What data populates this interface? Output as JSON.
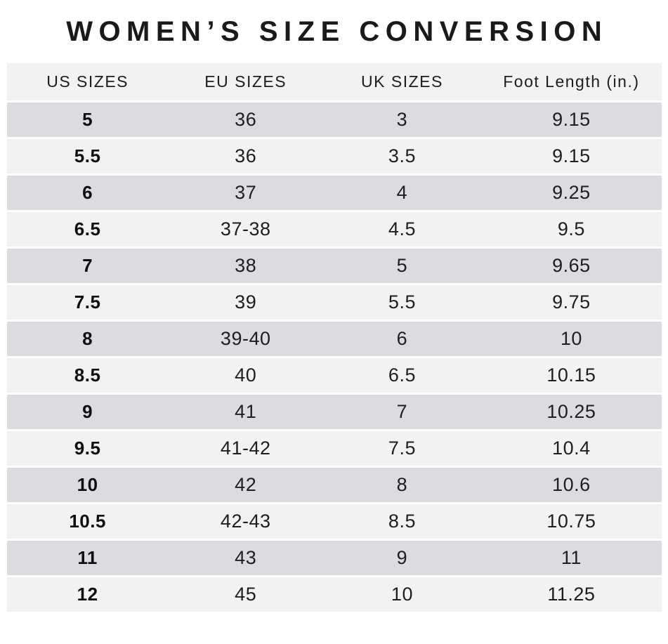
{
  "colors": {
    "row_dark": "#dbdcdf",
    "row_light": "#f2f2f3",
    "separator": "#ffffff",
    "text": "#1e1e1e",
    "background": "#ffffff"
  },
  "chart_data": {
    "type": "table",
    "title": "WOMEN’S SIZE CONVERSION",
    "columns": [
      "US SIZES",
      "EU SIZES",
      "UK SIZES",
      "Foot Length (in.)"
    ],
    "rows": [
      [
        "5",
        "36",
        "3",
        "9.15"
      ],
      [
        "5.5",
        "36",
        "3.5",
        "9.15"
      ],
      [
        "6",
        "37",
        "4",
        "9.25"
      ],
      [
        "6.5",
        "37-38",
        "4.5",
        "9.5"
      ],
      [
        "7",
        "38",
        "5",
        "9.65"
      ],
      [
        "7.5",
        "39",
        "5.5",
        "9.75"
      ],
      [
        "8",
        "39-40",
        "6",
        "10"
      ],
      [
        "8.5",
        "40",
        "6.5",
        "10.15"
      ],
      [
        "9",
        "41",
        "7",
        "10.25"
      ],
      [
        "9.5",
        "41-42",
        "7.5",
        "10.4"
      ],
      [
        "10",
        "42",
        "8",
        "10.6"
      ],
      [
        "10.5",
        "42-43",
        "8.5",
        "10.75"
      ],
      [
        "11",
        "43",
        "9",
        "11"
      ],
      [
        "12",
        "45",
        "10",
        "11.25"
      ]
    ],
    "layout": {
      "row_striping": "alternating dark/light starting dark",
      "alignment": "center",
      "first_column_bold": true
    }
  }
}
